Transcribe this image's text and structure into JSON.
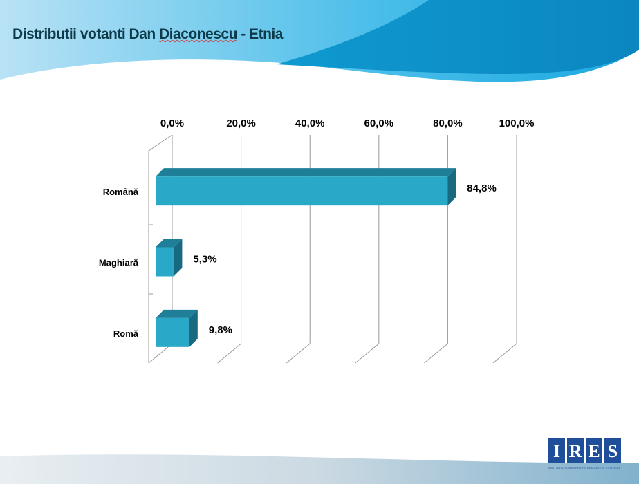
{
  "slide": {
    "title_parts": [
      "Distributii votanti Dan ",
      "Diaconescu",
      " - Etnia"
    ]
  },
  "colors": {
    "bar_front": "#2aa8c8",
    "bar_top": "#1f7f99",
    "bar_side": "#176a80",
    "header": "#1598cc",
    "title": "#0d3a4a"
  },
  "chart_data": {
    "type": "bar",
    "orientation": "horizontal",
    "3d": true,
    "categories": [
      "Română",
      "Maghiară",
      "Romă"
    ],
    "values": [
      84.8,
      5.3,
      9.8
    ],
    "data_labels": [
      "84,8%",
      "5,3%",
      "9,8%"
    ],
    "xlim": [
      0,
      100
    ],
    "x_ticks": [
      "0,0%",
      "20,0%",
      "40,0%",
      "60,0%",
      "80,0%",
      "100,0%"
    ],
    "x_axis_position": "top",
    "grid": true,
    "title": "",
    "xlabel": "",
    "ylabel": ""
  },
  "logo": {
    "letters": [
      "I",
      "R",
      "E",
      "S"
    ],
    "subtitle": "INSTITUTUL ROMAN PENTRU EVALUARE SI STRATEGIE"
  }
}
